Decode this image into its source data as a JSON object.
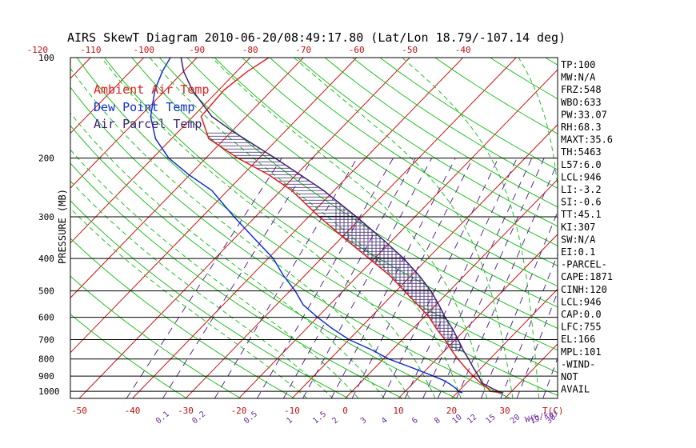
{
  "title": "AIRS SkewT Diagram 2010-06-20/08:49:17.80 (Lat/Lon 18.79/-107.14 deg)",
  "colors": {
    "frame": "#000000",
    "isotherm": "#d01010",
    "dry_adiabat": "#22c022",
    "moist_adiabat": "#22c022",
    "mixing_ratio": "#5a2a90",
    "ambient": "#e02020",
    "dewpoint": "#1030d0",
    "parcel": "#3a2270",
    "cape_hatch": "#3a2270",
    "top_axis_text": "#c01010",
    "bottom_axis_text": "#c01010",
    "mixing_axis_text": "#6a2aa0"
  },
  "legend": {
    "ambient": "Ambient Air Temp",
    "dewpoint": "Dew Point Temp",
    "parcel": "Air Parcel Temp"
  },
  "ylabel": "PRESSURE (MB)",
  "bottom_unit_t": "T(C)",
  "bottom_unit_w": "W(g/kg)",
  "indices": [
    "TP:100",
    "MW:N/A",
    "FRZ:548",
    "WBO:633",
    "PW:33.07",
    "RH:68.3",
    "MAXT:35.6",
    "TH:5463",
    "L57:6.0",
    "LCL:946",
    "LI:-3.2",
    "SI:-0.6",
    "TT:45.1",
    "KI:307",
    "SW:N/A",
    "EI:0.1",
    "-PARCEL-",
    "CAPE:1871",
    "CINH:120",
    "LCL:946",
    "CAP:0.0",
    "LFC:755",
    "EL:166",
    "MPL:101",
    "-WIND-",
    "NOT",
    "AVAIL"
  ],
  "chart_data": {
    "type": "line",
    "title": "AIRS SkewT Diagram 2010-06-20/08:49:17.80 (Lat/Lon 18.79/-107.14 deg)",
    "xlabel": "T(C)",
    "ylabel": "PRESSURE (MB)",
    "y_scale": "log",
    "y_reversed": true,
    "ylim": [
      1050,
      100
    ],
    "pressure_ticks": [
      100,
      200,
      300,
      400,
      500,
      600,
      700,
      800,
      900,
      1000
    ],
    "pressure_tick_labels": [
      "100",
      "200",
      "300",
      "400",
      "500",
      "600",
      "700",
      "800",
      "900",
      "1000"
    ],
    "top_temperature_ticks": [
      -120,
      -110,
      -100,
      -90,
      -80,
      -70,
      -60,
      -50,
      -40
    ],
    "top_temperature_labels": [
      "-120",
      "-110",
      "-100",
      "-90",
      "-80",
      "-70",
      "-60",
      "-50",
      "-40"
    ],
    "bottom_temperature_ticks": [
      -50,
      -40,
      -30,
      -20,
      -10,
      0,
      10,
      20,
      30
    ],
    "bottom_temperature_labels": [
      "-50",
      "-40",
      "-30",
      "-20",
      "-10",
      "0",
      "10",
      "20",
      "30"
    ],
    "mixing_ratio_ticks": [
      0.1,
      0.2,
      0.5,
      1,
      1.5,
      2,
      3,
      4,
      6,
      8,
      10,
      12,
      15,
      20,
      25,
      30,
      40
    ],
    "mixing_ratio_labels": [
      "0.1",
      "0.2",
      "0.5",
      "1",
      "1.5",
      "2",
      "3",
      "4",
      "6",
      "8",
      "10",
      "12",
      "15",
      "20",
      "25",
      "30",
      "40"
    ],
    "isotherms_c": [
      -150,
      -140,
      -130,
      -120,
      -110,
      -100,
      -90,
      -80,
      -70,
      -60,
      -50,
      -40,
      -30,
      -20,
      -10,
      0,
      10,
      20,
      30,
      40
    ],
    "dry_adiabats_k": [
      240,
      250,
      260,
      270,
      280,
      290,
      300,
      310,
      320,
      330,
      340,
      350,
      360,
      370,
      380,
      390,
      400,
      410,
      420,
      440,
      460,
      480,
      500,
      520,
      540
    ],
    "moist_adiabats_thetaw_c": [
      -10,
      -5,
      0,
      5,
      10,
      15,
      20,
      25,
      30,
      35,
      40
    ],
    "cape_region": {
      "bottom_hpa": 755,
      "top_hpa": 166
    },
    "series": [
      {
        "name": "Ambient Air Temp",
        "pressure": [
          1010,
          1000,
          980,
          950,
          925,
          900,
          850,
          800,
          750,
          700,
          650,
          600,
          550,
          500,
          450,
          400,
          350,
          300,
          250,
          225,
          200,
          175,
          150,
          125,
          110,
          100
        ],
        "temperature": [
          28.5,
          26.0,
          25.0,
          23.0,
          21.5,
          20.0,
          17.0,
          14.0,
          11.0,
          8.0,
          4.5,
          1.0,
          -3.5,
          -8.5,
          -14.0,
          -21.0,
          -29.0,
          -38.0,
          -48.0,
          -55.0,
          -64.0,
          -73.0,
          -78.5,
          -79.0,
          -78.0,
          -76.5
        ]
      },
      {
        "name": "Dew Point Temp",
        "pressure": [
          1010,
          1000,
          980,
          950,
          925,
          900,
          850,
          800,
          750,
          700,
          650,
          600,
          550,
          500,
          450,
          400,
          350,
          300,
          250,
          225,
          200,
          175,
          150,
          125,
          110,
          100
        ],
        "temperature": [
          21.0,
          20.0,
          19.0,
          17.0,
          15.0,
          12.5,
          7.0,
          1.0,
          -4.0,
          -10.0,
          -15.0,
          -20.0,
          -25.0,
          -29.0,
          -34.0,
          -39.0,
          -46.0,
          -54.0,
          -63.0,
          -70.0,
          -77.0,
          -83.0,
          -88.0,
          -92.0,
          -94.0,
          -95.0
        ]
      },
      {
        "name": "Air Parcel Temp",
        "pressure": [
          1010,
          1000,
          980,
          946,
          900,
          850,
          800,
          755,
          700,
          650,
          600,
          550,
          500,
          450,
          400,
          350,
          300,
          250,
          200,
          166,
          150,
          125,
          110,
          100
        ],
        "temperature": [
          28.5,
          27.5,
          25.8,
          23.0,
          21.0,
          18.5,
          16.0,
          13.5,
          10.5,
          7.5,
          4.0,
          0.5,
          -3.5,
          -8.5,
          -14.5,
          -22.0,
          -31.0,
          -42.0,
          -57.0,
          -70.0,
          -76.5,
          -85.0,
          -90.0,
          -93.0
        ]
      }
    ]
  }
}
